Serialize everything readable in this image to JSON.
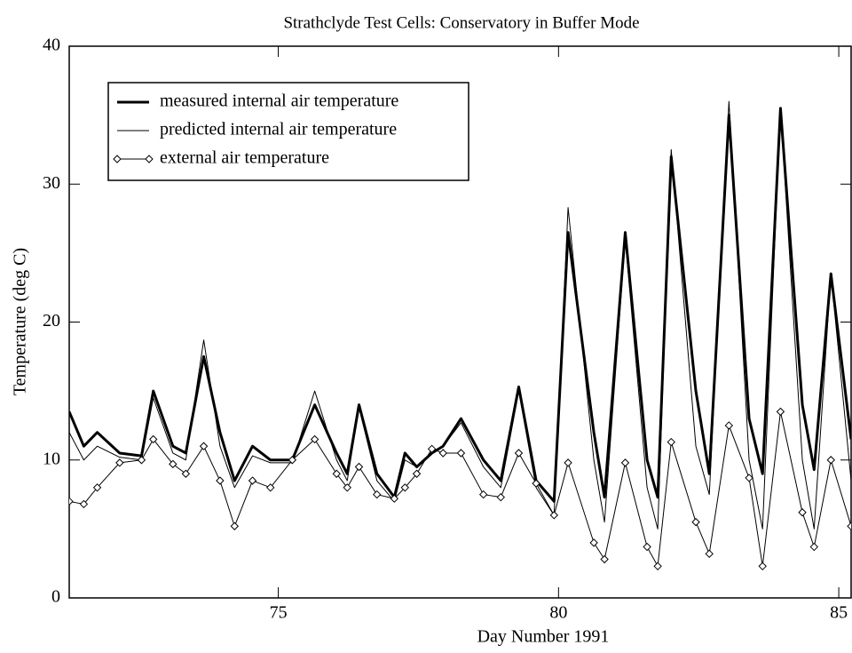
{
  "chart_data": {
    "type": "line",
    "title": "Strathclyde Test Cells: Conservatory in Buffer Mode",
    "xlabel": "Day Number 1991",
    "ylabel": "Temperature (deg C)",
    "x": [
      71.27,
      71.53,
      71.77,
      72.17,
      72.56,
      72.77,
      73.12,
      73.35,
      73.67,
      73.96,
      74.22,
      74.54,
      74.86,
      75.25,
      75.65,
      76.04,
      76.23,
      76.44,
      76.76,
      77.07,
      77.26,
      77.47,
      77.74,
      77.94,
      78.26,
      78.66,
      78.97,
      79.29,
      79.6,
      79.92,
      80.17,
      80.63,
      80.82,
      81.19,
      81.58,
      81.77,
      82.01,
      82.45,
      82.69,
      83.04,
      83.4,
      83.64,
      83.96,
      84.35,
      84.56,
      84.86,
      85.22
    ],
    "series": [
      {
        "name": "measured internal air temperature",
        "color": "#000000",
        "width": 3,
        "marker": "none",
        "values": [
          13.5,
          11,
          12,
          10.5,
          10.3,
          15,
          11,
          10.5,
          17.5,
          12,
          8.5,
          11,
          10,
          10,
          14,
          10.5,
          9,
          14,
          9,
          7.3,
          10.5,
          9.5,
          10.5,
          11,
          13,
          10,
          8.5,
          15.3,
          8.5,
          7,
          26.5,
          12,
          7.3,
          26.5,
          10,
          7.3,
          32,
          15,
          9,
          35,
          13,
          9,
          35.5,
          14,
          9.3,
          23.5,
          11.5
        ]
      },
      {
        "name": "predicted internal air temperature",
        "color": "#000000",
        "width": 1,
        "marker": "none",
        "values": [
          12,
          10,
          11,
          10.2,
          10,
          14.5,
          10.5,
          10,
          18.7,
          11,
          8,
          10.3,
          9.8,
          9.8,
          15,
          10,
          8.5,
          13.8,
          8.5,
          7,
          10,
          9.5,
          10.5,
          11,
          12.7,
          9.5,
          8,
          15,
          8,
          6,
          28.3,
          10,
          5.5,
          26,
          8,
          5,
          32.5,
          11,
          7.5,
          36,
          10,
          5,
          35.5,
          10,
          5,
          23.5,
          8.5
        ]
      },
      {
        "name": "external air temperature",
        "color": "#000000",
        "width": 1,
        "marker": "diamond",
        "values": [
          7,
          6.8,
          8,
          9.8,
          10,
          11.5,
          9.7,
          9,
          11,
          8.5,
          5.2,
          8.5,
          8,
          10,
          11.5,
          9,
          8,
          9.5,
          7.5,
          7.2,
          8,
          9,
          10.8,
          10.5,
          10.5,
          7.5,
          7.3,
          10.5,
          8.3,
          6,
          9.8,
          4,
          2.8,
          9.8,
          3.7,
          2.3,
          11.3,
          5.5,
          3.2,
          12.5,
          8.7,
          2.3,
          13.5,
          6.2,
          3.7,
          10,
          5.2
        ]
      }
    ],
    "xlim": [
      71.27,
      85.22
    ],
    "ylim": [
      0,
      40
    ],
    "xticks": [
      75,
      80,
      85
    ],
    "yticks": [
      0,
      10,
      20,
      30,
      40
    ],
    "grid": false,
    "legend": "upper left"
  }
}
